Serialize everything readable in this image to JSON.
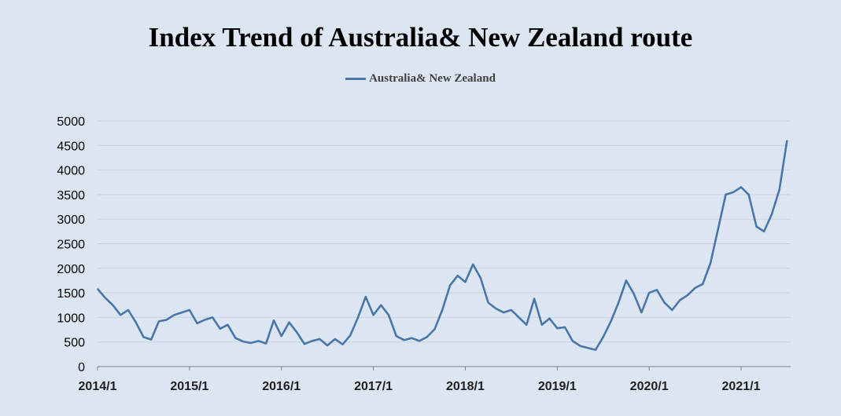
{
  "chart_data": {
    "type": "line",
    "title": "Index Trend of Australia& New Zealand route",
    "xlabel": "",
    "ylabel": "",
    "ylim": [
      0,
      5000
    ],
    "yticks": [
      "0",
      "500",
      "1000",
      "1500",
      "2000",
      "2500",
      "3000",
      "3500",
      "4000",
      "4500",
      "5000"
    ],
    "xticks": [
      "2014/1",
      "2015/1",
      "2016/1",
      "2017/1",
      "2018/1",
      "2019/1",
      "2020/1",
      "2021/1"
    ],
    "grid": "horizontal",
    "legend_position": "top-center",
    "series": [
      {
        "name": "Australia& New Zealand",
        "color": "#4a76aa",
        "points": [
          [
            "2014-01",
            1580
          ],
          [
            "2014-02",
            1400
          ],
          [
            "2014-03",
            1250
          ],
          [
            "2014-04",
            1050
          ],
          [
            "2014-05",
            1150
          ],
          [
            "2014-06",
            900
          ],
          [
            "2014-07",
            600
          ],
          [
            "2014-08",
            550
          ],
          [
            "2014-09",
            920
          ],
          [
            "2014-10",
            950
          ],
          [
            "2014-11",
            1050
          ],
          [
            "2014-12",
            1100
          ],
          [
            "2015-01",
            1150
          ],
          [
            "2015-02",
            880
          ],
          [
            "2015-03",
            950
          ],
          [
            "2015-04",
            1000
          ],
          [
            "2015-05",
            770
          ],
          [
            "2015-06",
            850
          ],
          [
            "2015-07",
            580
          ],
          [
            "2015-08",
            510
          ],
          [
            "2015-09",
            480
          ],
          [
            "2015-10",
            520
          ],
          [
            "2015-11",
            470
          ],
          [
            "2015-12",
            940
          ],
          [
            "2016-01",
            620
          ],
          [
            "2016-02",
            900
          ],
          [
            "2016-03",
            700
          ],
          [
            "2016-04",
            460
          ],
          [
            "2016-05",
            520
          ],
          [
            "2016-06",
            560
          ],
          [
            "2016-07",
            430
          ],
          [
            "2016-08",
            560
          ],
          [
            "2016-09",
            450
          ],
          [
            "2016-10",
            640
          ],
          [
            "2016-11",
            1000
          ],
          [
            "2016-12",
            1420
          ],
          [
            "2017-01",
            1050
          ],
          [
            "2017-02",
            1250
          ],
          [
            "2017-03",
            1050
          ],
          [
            "2017-04",
            620
          ],
          [
            "2017-05",
            540
          ],
          [
            "2017-06",
            580
          ],
          [
            "2017-07",
            520
          ],
          [
            "2017-08",
            600
          ],
          [
            "2017-09",
            760
          ],
          [
            "2017-10",
            1150
          ],
          [
            "2017-11",
            1650
          ],
          [
            "2017-12",
            1850
          ],
          [
            "2018-01",
            1720
          ],
          [
            "2018-02",
            2080
          ],
          [
            "2018-03",
            1800
          ],
          [
            "2018-04",
            1300
          ],
          [
            "2018-05",
            1180
          ],
          [
            "2018-06",
            1100
          ],
          [
            "2018-07",
            1150
          ],
          [
            "2018-08",
            1000
          ],
          [
            "2018-09",
            850
          ],
          [
            "2018-10",
            1380
          ],
          [
            "2018-11",
            850
          ],
          [
            "2018-12",
            980
          ],
          [
            "2019-01",
            780
          ],
          [
            "2019-02",
            800
          ],
          [
            "2019-03",
            520
          ],
          [
            "2019-04",
            420
          ],
          [
            "2019-05",
            380
          ],
          [
            "2019-06",
            340
          ],
          [
            "2019-07",
            600
          ],
          [
            "2019-08",
            920
          ],
          [
            "2019-09",
            1300
          ],
          [
            "2019-10",
            1750
          ],
          [
            "2019-11",
            1480
          ],
          [
            "2019-12",
            1100
          ],
          [
            "2020-01",
            1500
          ],
          [
            "2020-02",
            1560
          ],
          [
            "2020-03",
            1300
          ],
          [
            "2020-04",
            1150
          ],
          [
            "2020-05",
            1350
          ],
          [
            "2020-06",
            1450
          ],
          [
            "2020-07",
            1600
          ],
          [
            "2020-08",
            1680
          ],
          [
            "2020-09",
            2100
          ],
          [
            "2020-10",
            2800
          ],
          [
            "2020-11",
            3500
          ],
          [
            "2020-12",
            3550
          ],
          [
            "2021-01",
            3650
          ],
          [
            "2021-02",
            3500
          ],
          [
            "2021-03",
            2850
          ],
          [
            "2021-04",
            2750
          ],
          [
            "2021-05",
            3100
          ],
          [
            "2021-06",
            3600
          ],
          [
            "2021-07",
            4600
          ]
        ]
      }
    ]
  }
}
